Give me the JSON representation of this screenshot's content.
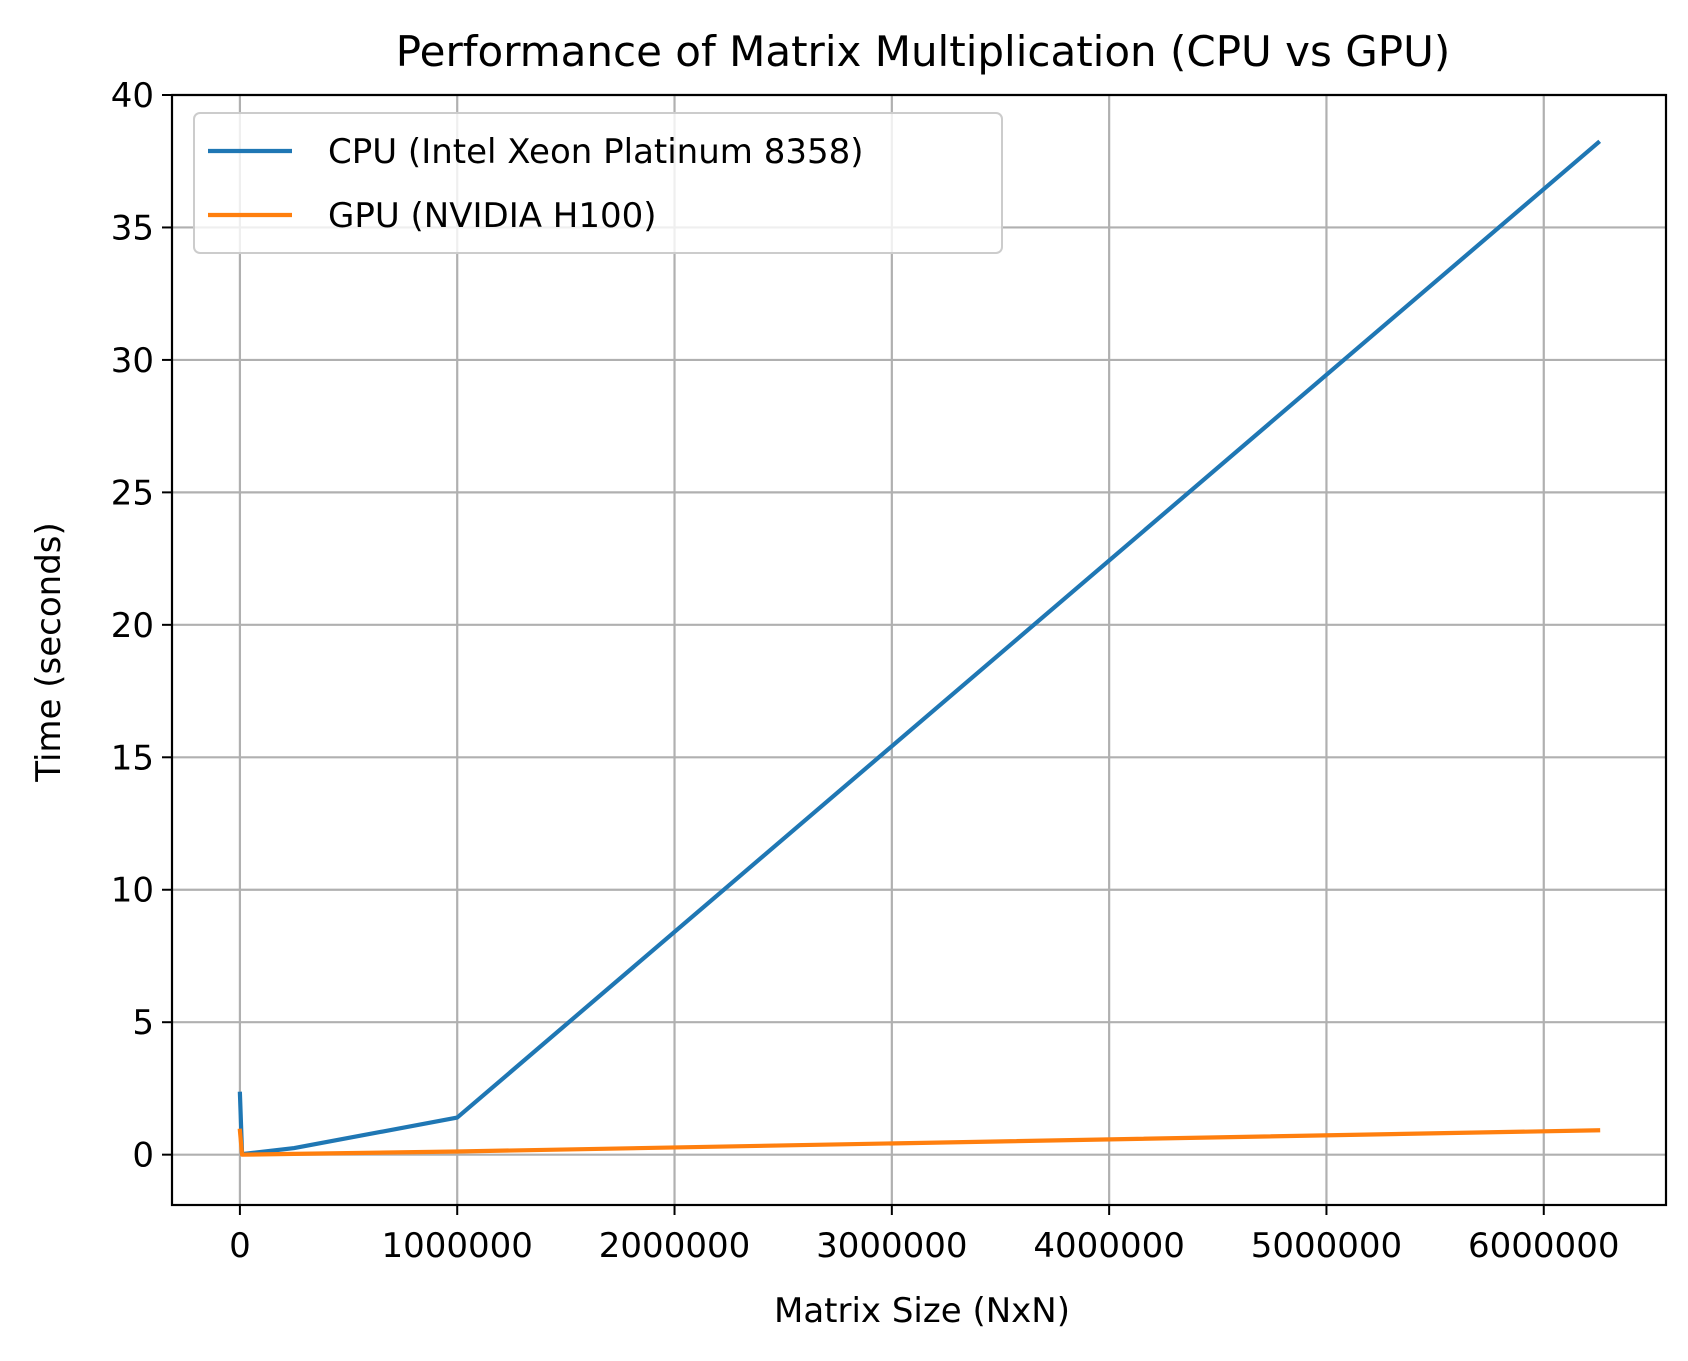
{
  "chart_data": {
    "type": "line",
    "title": "Performance of Matrix Multiplication (CPU vs GPU)",
    "xlabel": "Matrix Size (NxN)",
    "ylabel": "Time (seconds)",
    "xlim": [
      -312500,
      6562500
    ],
    "ylim": [
      -1.9,
      40.0
    ],
    "xticks": [
      0,
      1000000,
      2000000,
      3000000,
      4000000,
      5000000,
      6000000
    ],
    "xtick_labels": [
      "0",
      "1000000",
      "2000000",
      "3000000",
      "4000000",
      "5000000",
      "6000000"
    ],
    "yticks": [
      0,
      5,
      10,
      15,
      20,
      25,
      30,
      35,
      40
    ],
    "ytick_labels": [
      "0",
      "5",
      "10",
      "15",
      "20",
      "25",
      "30",
      "35",
      "40"
    ],
    "grid": true,
    "legend_position": "upper-left",
    "x": [
      100,
      10000,
      250000,
      1000000,
      6250000
    ],
    "series": [
      {
        "name": "CPU (Intel Xeon Platinum 8358)",
        "color": "#1f77b4",
        "values": [
          2.3,
          0.02,
          0.25,
          1.4,
          38.2
        ]
      },
      {
        "name": "GPU (NVIDIA H100)",
        "color": "#ff7f0e",
        "values": [
          0.9,
          0.0,
          0.03,
          0.12,
          0.92
        ]
      }
    ]
  }
}
